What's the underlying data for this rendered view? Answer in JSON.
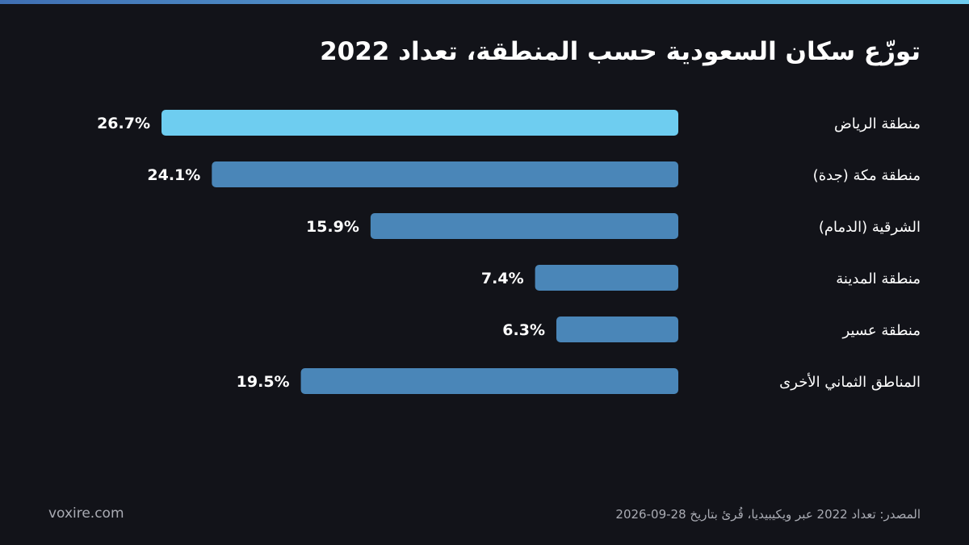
{
  "title": "توزّع سكان السعودية حسب المنطقة، تعداد 2022",
  "footer": {
    "brand": "voxire.com",
    "source": "المصدر: تعداد 2022 عبر ويكيبيديا، قُرئ بتاريخ 28-09-2026"
  },
  "colors": {
    "background": "#121319",
    "highlight_bar": "#6ecdf0",
    "bar": "#4a86b8",
    "text": "#ffffff",
    "muted_text": "#a9abb3"
  },
  "chart_data": {
    "type": "bar",
    "orientation": "horizontal",
    "title": "توزّع سكان السعودية حسب المنطقة، تعداد 2022",
    "categories": [
      "منطقة الرياض",
      "منطقة مكة (جدة)",
      "الشرقية (الدمام)",
      "منطقة المدينة",
      "منطقة عسير",
      "المناطق الثماني الأخرى"
    ],
    "values": [
      26.7,
      24.1,
      15.9,
      7.4,
      6.3,
      19.5
    ],
    "value_labels": [
      "26.7%",
      "24.1%",
      "15.9%",
      "7.4%",
      "6.3%",
      "19.5%"
    ],
    "unit": "%",
    "highlight_index": 0,
    "xlim": [
      0,
      26.7
    ],
    "grid": false,
    "legend": "none"
  }
}
